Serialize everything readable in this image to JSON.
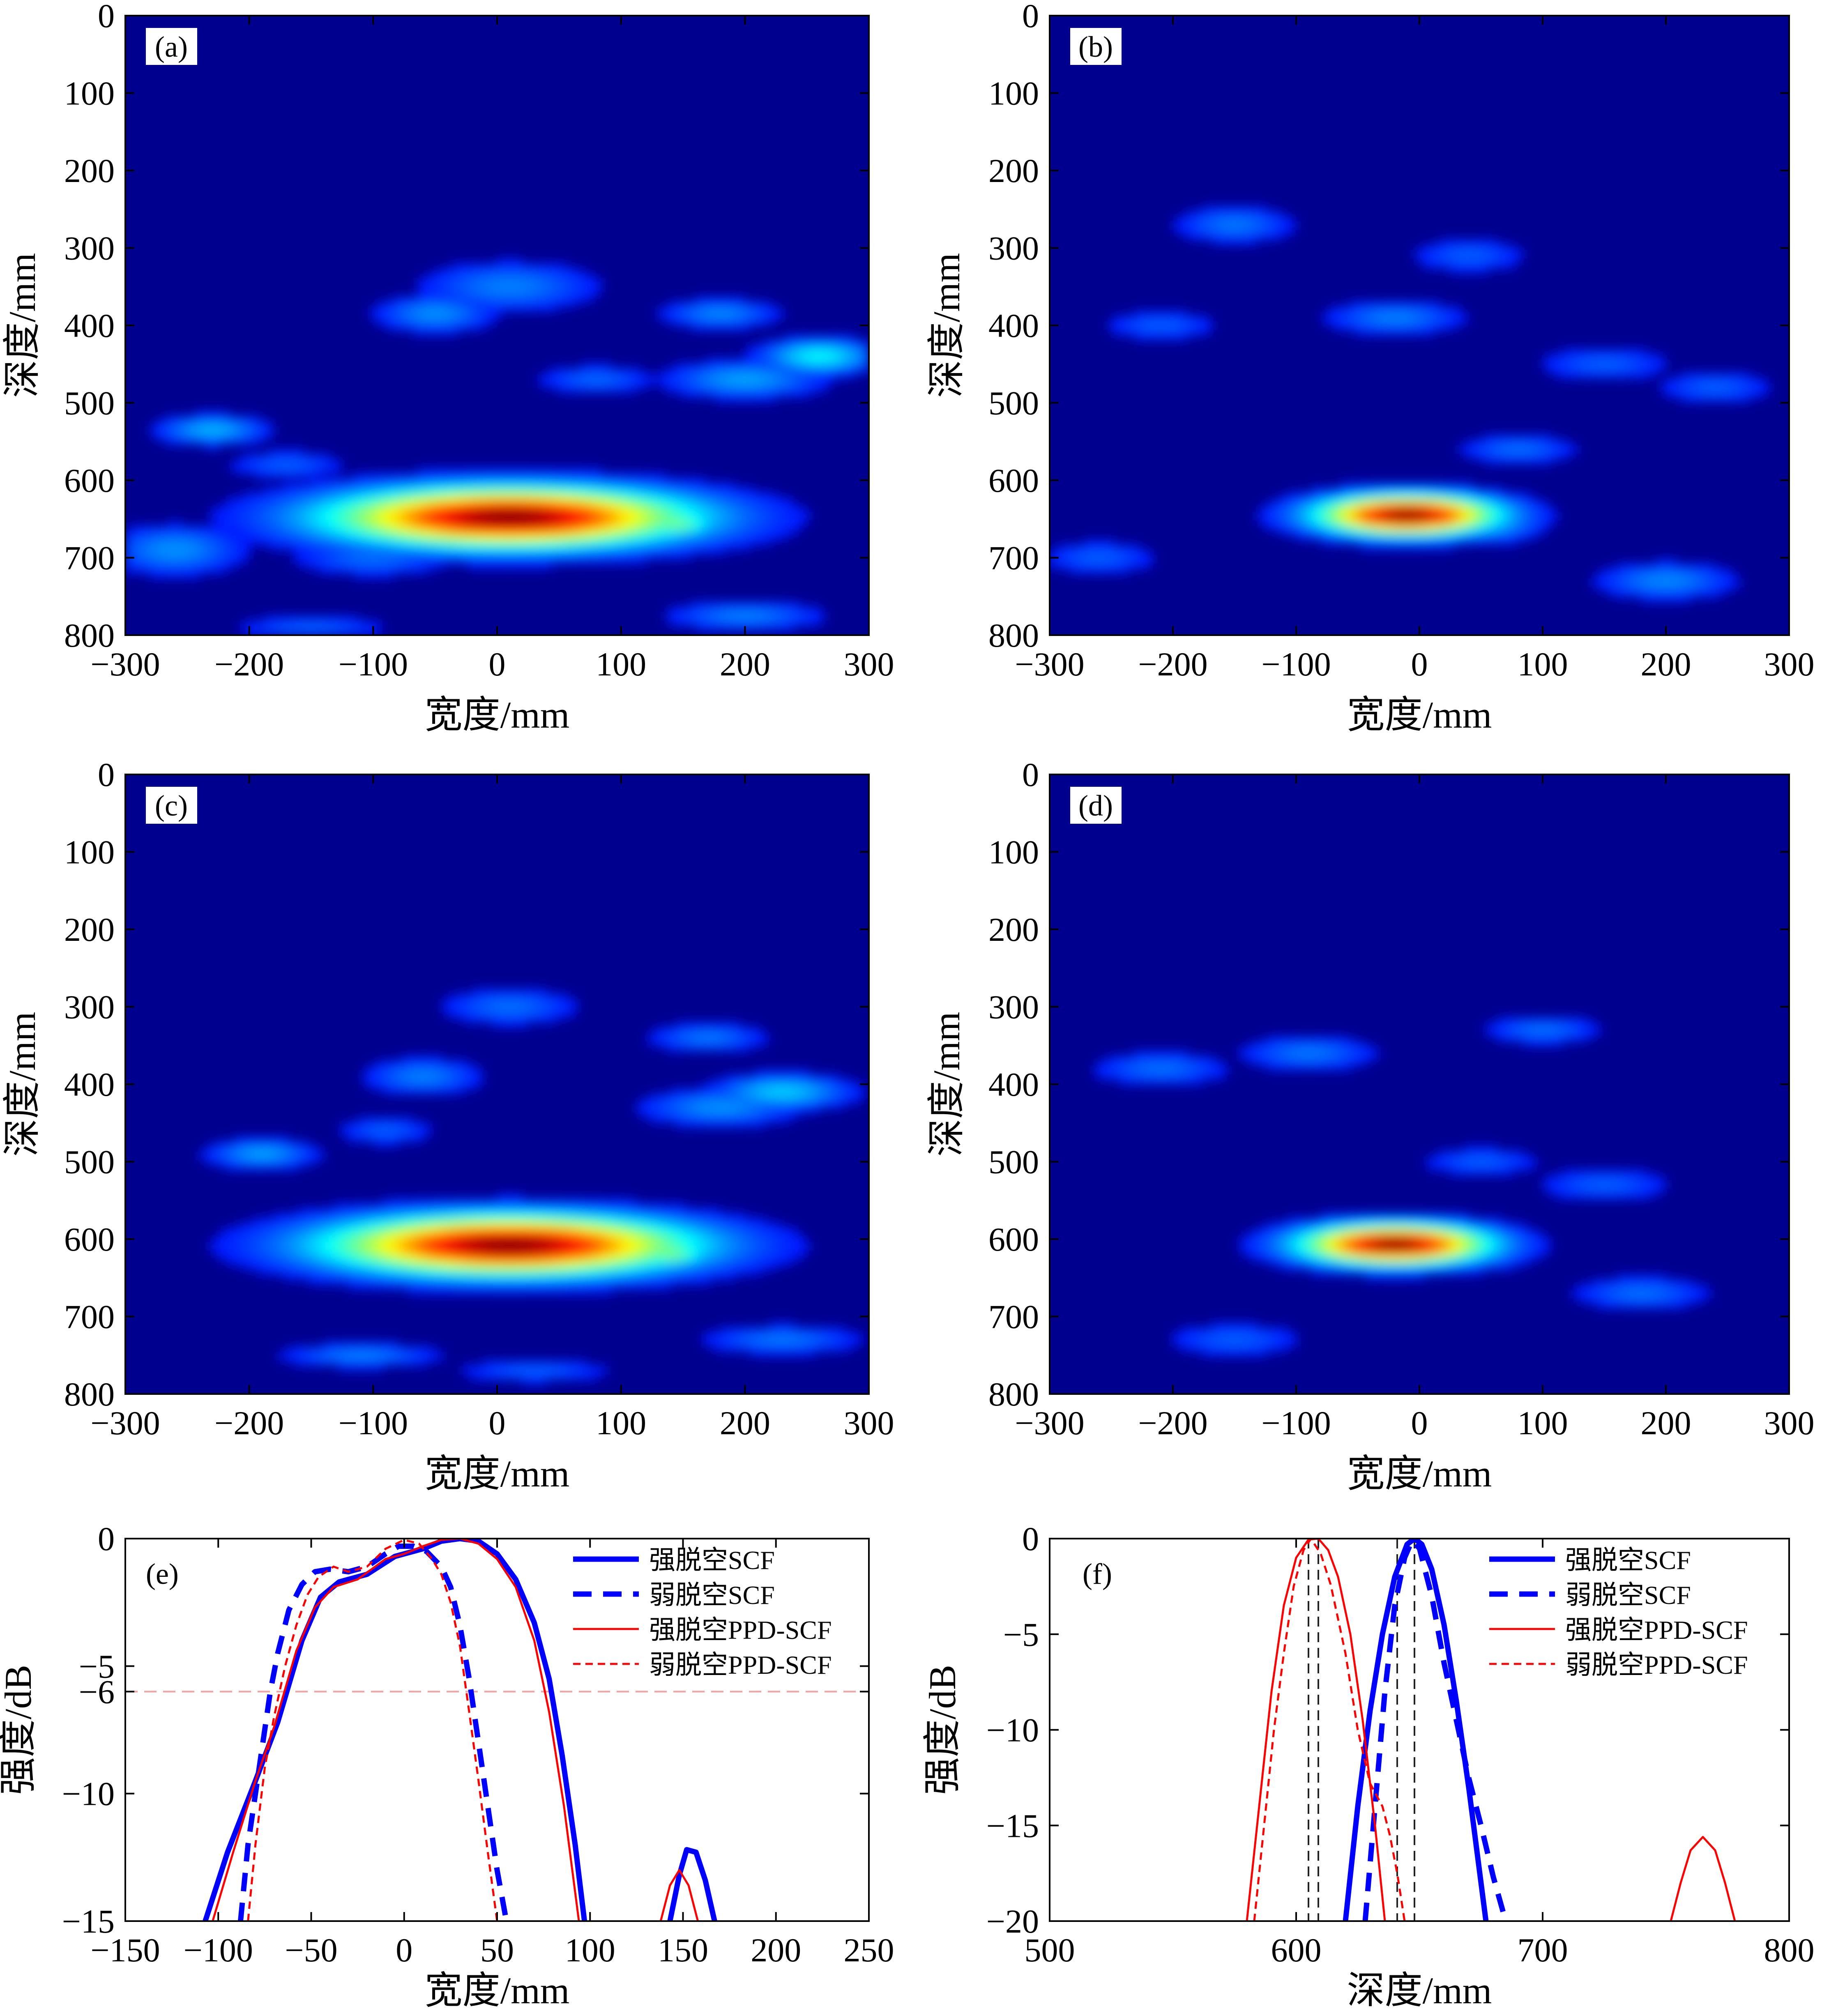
{
  "chart_data": [
    {
      "type": "heatmap",
      "panel_label": "(a)",
      "xlabel": "宽度/mm",
      "ylabel": "深度/mm",
      "xlim": [
        -300,
        300
      ],
      "ylim": [
        800,
        0
      ],
      "xticks": [
        "−300",
        "−200",
        "−100",
        "0",
        "100",
        "200",
        "300"
      ],
      "yticks": [
        "0",
        "100",
        "200",
        "300",
        "400",
        "500",
        "600",
        "700",
        "800"
      ],
      "hotspots": [
        {
          "x": 10,
          "y": 648,
          "wx": 95,
          "wy": 25,
          "i": 1.0
        },
        {
          "x": 145,
          "y": 657,
          "wx": 22,
          "wy": 9,
          "i": 0.45
        },
        {
          "x": -230,
          "y": 535,
          "wx": 28,
          "wy": 12,
          "i": 0.22
        },
        {
          "x": -50,
          "y": 385,
          "wx": 30,
          "wy": 15,
          "i": 0.18
        },
        {
          "x": 10,
          "y": 350,
          "wx": 45,
          "wy": 20,
          "i": 0.16
        },
        {
          "x": 260,
          "y": 440,
          "wx": 30,
          "wy": 14,
          "i": 0.3
        },
        {
          "x": 180,
          "y": 385,
          "wx": 30,
          "wy": 12,
          "i": 0.17
        },
        {
          "x": 200,
          "y": 470,
          "wx": 40,
          "wy": 15,
          "i": 0.2
        },
        {
          "x": -260,
          "y": 690,
          "wx": 35,
          "wy": 20,
          "i": 0.18
        },
        {
          "x": -100,
          "y": 700,
          "wx": 40,
          "wy": 15,
          "i": 0.14
        },
        {
          "x": 200,
          "y": 775,
          "wx": 40,
          "wy": 12,
          "i": 0.16
        },
        {
          "x": -150,
          "y": 790,
          "wx": 40,
          "wy": 10,
          "i": 0.12
        },
        {
          "x": -170,
          "y": 580,
          "wx": 30,
          "wy": 12,
          "i": 0.12
        },
        {
          "x": 80,
          "y": 470,
          "wx": 30,
          "wy": 12,
          "i": 0.13
        }
      ]
    },
    {
      "type": "heatmap",
      "panel_label": "(b)",
      "xlabel": "宽度/mm",
      "ylabel": "深度/mm",
      "xlim": [
        -300,
        300
      ],
      "ylim": [
        800,
        0
      ],
      "xticks": [
        "−300",
        "−200",
        "−100",
        "0",
        "100",
        "200",
        "300"
      ],
      "yticks": [
        "0",
        "100",
        "200",
        "300",
        "400",
        "500",
        "600",
        "700",
        "800"
      ],
      "hotspots": [
        {
          "x": -10,
          "y": 645,
          "wx": 48,
          "wy": 17,
          "i": 1.0
        },
        {
          "x": 50,
          "y": 655,
          "wx": 30,
          "wy": 15,
          "i": 0.25
        },
        {
          "x": -150,
          "y": 270,
          "wx": 30,
          "wy": 15,
          "i": 0.15
        },
        {
          "x": -20,
          "y": 390,
          "wx": 35,
          "wy": 14,
          "i": 0.16
        },
        {
          "x": 80,
          "y": 560,
          "wx": 30,
          "wy": 12,
          "i": 0.14
        },
        {
          "x": 200,
          "y": 730,
          "wx": 35,
          "wy": 15,
          "i": 0.17
        },
        {
          "x": -210,
          "y": 400,
          "wx": 30,
          "wy": 12,
          "i": 0.12
        },
        {
          "x": 150,
          "y": 450,
          "wx": 35,
          "wy": 14,
          "i": 0.12
        },
        {
          "x": 40,
          "y": 310,
          "wx": 30,
          "wy": 14,
          "i": 0.12
        },
        {
          "x": -260,
          "y": 700,
          "wx": 30,
          "wy": 14,
          "i": 0.12
        },
        {
          "x": 240,
          "y": 480,
          "wx": 30,
          "wy": 14,
          "i": 0.12
        }
      ]
    },
    {
      "type": "heatmap",
      "panel_label": "(c)",
      "xlabel": "宽度/mm",
      "ylabel": "深度/mm",
      "xlim": [
        -300,
        300
      ],
      "ylim": [
        800,
        0
      ],
      "xticks": [
        "−300",
        "−200",
        "−100",
        "0",
        "100",
        "200",
        "300"
      ],
      "yticks": [
        "0",
        "100",
        "200",
        "300",
        "400",
        "500",
        "600",
        "700",
        "800"
      ],
      "hotspots": [
        {
          "x": 10,
          "y": 608,
          "wx": 95,
          "wy": 25,
          "i": 1.0
        },
        {
          "x": 140,
          "y": 620,
          "wx": 22,
          "wy": 10,
          "i": 0.45
        },
        {
          "x": -190,
          "y": 490,
          "wx": 28,
          "wy": 12,
          "i": 0.2
        },
        {
          "x": -60,
          "y": 390,
          "wx": 30,
          "wy": 15,
          "i": 0.16
        },
        {
          "x": 10,
          "y": 300,
          "wx": 35,
          "wy": 15,
          "i": 0.14
        },
        {
          "x": 230,
          "y": 410,
          "wx": 35,
          "wy": 14,
          "i": 0.25
        },
        {
          "x": 170,
          "y": 340,
          "wx": 30,
          "wy": 12,
          "i": 0.15
        },
        {
          "x": 180,
          "y": 430,
          "wx": 40,
          "wy": 15,
          "i": 0.18
        },
        {
          "x": -110,
          "y": 750,
          "wx": 40,
          "wy": 10,
          "i": 0.16
        },
        {
          "x": 230,
          "y": 730,
          "wx": 40,
          "wy": 12,
          "i": 0.15
        },
        {
          "x": 30,
          "y": 770,
          "wx": 40,
          "wy": 10,
          "i": 0.12
        },
        {
          "x": -90,
          "y": 460,
          "wx": 25,
          "wy": 12,
          "i": 0.12
        }
      ]
    },
    {
      "type": "heatmap",
      "panel_label": "(d)",
      "xlabel": "宽度/mm",
      "ylabel": "深度/mm",
      "xlim": [
        -300,
        300
      ],
      "ylim": [
        800,
        0
      ],
      "xticks": [
        "−300",
        "−200",
        "−100",
        "0",
        "100",
        "200",
        "300"
      ],
      "yticks": [
        "0",
        "100",
        "200",
        "300",
        "400",
        "500",
        "600",
        "700",
        "800"
      ],
      "hotspots": [
        {
          "x": -20,
          "y": 607,
          "wx": 50,
          "wy": 17,
          "i": 1.0
        },
        {
          "x": 40,
          "y": 615,
          "wx": 30,
          "wy": 15,
          "i": 0.25
        },
        {
          "x": -90,
          "y": 360,
          "wx": 35,
          "wy": 14,
          "i": 0.15
        },
        {
          "x": -210,
          "y": 380,
          "wx": 35,
          "wy": 14,
          "i": 0.14
        },
        {
          "x": 100,
          "y": 330,
          "wx": 30,
          "wy": 12,
          "i": 0.14
        },
        {
          "x": 180,
          "y": 670,
          "wx": 35,
          "wy": 14,
          "i": 0.14
        },
        {
          "x": 50,
          "y": 500,
          "wx": 30,
          "wy": 12,
          "i": 0.12
        },
        {
          "x": -150,
          "y": 730,
          "wx": 35,
          "wy": 14,
          "i": 0.12
        },
        {
          "x": 150,
          "y": 530,
          "wx": 35,
          "wy": 14,
          "i": 0.12
        }
      ]
    },
    {
      "type": "line",
      "panel_label": "(e)",
      "xlabel": "宽度/mm",
      "ylabel": "强度/dB",
      "xlim": [
        -150,
        250
      ],
      "ylim": [
        -15,
        0
      ],
      "xticks": [
        -150,
        -100,
        -50,
        0,
        50,
        100,
        150,
        200,
        250
      ],
      "xtick_labels": [
        "−150",
        "−100",
        "−50",
        "0",
        "50",
        "100",
        "150",
        "200",
        "250"
      ],
      "yticks": [
        0,
        -5,
        -6,
        -10,
        -15
      ],
      "ytick_labels": [
        "0",
        "−5",
        "−6",
        "−10",
        "−15"
      ],
      "hline": -6,
      "series": [
        {
          "name": "强脱空SCF",
          "color": "#0000ff",
          "style": "thick-solid",
          "x": [
            -107,
            -95,
            -80,
            -68,
            -55,
            -45,
            -35,
            -20,
            -5,
            10,
            20,
            30,
            40,
            50,
            60,
            70,
            78,
            85,
            92,
            97
          ],
          "y": [
            -15,
            -12.3,
            -9.5,
            -7.2,
            -4,
            -2.3,
            -1.7,
            -1.4,
            -0.7,
            -0.4,
            -0.1,
            0,
            -0.1,
            -0.6,
            -1.6,
            -3.3,
            -5.5,
            -8.5,
            -12,
            -15
          ]
        },
        {
          "name": "强脱空SCF",
          "color": "#0000ff",
          "style": "thick-solid",
          "x": [
            143,
            148,
            152,
            157,
            162,
            167
          ],
          "y": [
            -15,
            -13.2,
            -12.2,
            -12.3,
            -13.4,
            -15
          ]
        },
        {
          "name": "弱脱空SCF",
          "color": "#0000ff",
          "style": "thick-dashed",
          "x": [
            -88,
            -84,
            -80,
            -76,
            -72,
            -68,
            -62,
            -55,
            -48,
            -40,
            -30,
            -20,
            -10,
            -3,
            5,
            12,
            20,
            25,
            30,
            35,
            40,
            45,
            50,
            55
          ],
          "y": [
            -15,
            -12,
            -10,
            -8,
            -6,
            -4.5,
            -2.8,
            -1.8,
            -1.3,
            -1.2,
            -1.3,
            -1.1,
            -0.6,
            -0.3,
            -0.3,
            -0.5,
            -1.1,
            -1.9,
            -3.4,
            -5.5,
            -8,
            -10.5,
            -13,
            -15
          ]
        },
        {
          "name": "强脱空PPD-SCF",
          "color": "#ff0000",
          "style": "thin-solid",
          "x": [
            -103,
            -92,
            -80,
            -70,
            -58,
            -48,
            -38,
            -25,
            -10,
            0,
            10,
            20,
            30,
            40,
            50,
            60,
            70,
            78,
            86,
            94
          ],
          "y": [
            -15,
            -12.3,
            -9.5,
            -7.4,
            -4.4,
            -2.7,
            -1.9,
            -1.6,
            -0.8,
            -0.6,
            -0.3,
            -0.05,
            0,
            -0.2,
            -0.8,
            -1.9,
            -4,
            -6.8,
            -10.5,
            -15
          ]
        },
        {
          "name": "强脱空PPD-SCF",
          "color": "#ff0000",
          "style": "thin-solid",
          "x": [
            138,
            143,
            148,
            153,
            158
          ],
          "y": [
            -15,
            -13.6,
            -13,
            -13.6,
            -15
          ]
        },
        {
          "name": "弱脱空PPD-SCF",
          "color": "#ff0000",
          "style": "thin-dashed",
          "x": [
            -84,
            -80,
            -75,
            -70,
            -64,
            -58,
            -52,
            -46,
            -38,
            -30,
            -20,
            -10,
            0,
            8,
            15,
            20,
            25,
            30,
            35,
            40,
            45,
            50
          ],
          "y": [
            -15,
            -12,
            -9,
            -7,
            -5,
            -3.4,
            -2.2,
            -1.5,
            -1.1,
            -1.3,
            -1.1,
            -0.4,
            -0.05,
            -0.2,
            -0.8,
            -1.4,
            -2.5,
            -4.2,
            -6.8,
            -9.5,
            -12.3,
            -15
          ]
        }
      ]
    },
    {
      "type": "line",
      "panel_label": "(f)",
      "xlabel": "深度/mm",
      "ylabel": "强度/dB",
      "xlim": [
        500,
        800
      ],
      "ylim": [
        -20,
        0
      ],
      "xticks": [
        500,
        600,
        700,
        800
      ],
      "xtick_labels": [
        "500",
        "600",
        "700",
        "800"
      ],
      "yticks": [
        0,
        -5,
        -10,
        -15,
        -20
      ],
      "ytick_labels": [
        "0",
        "−5",
        "−10",
        "−15",
        "−20"
      ],
      "vlines": [
        605,
        609,
        641,
        648
      ],
      "series": [
        {
          "name": "强脱空SCF",
          "color": "#0000ff",
          "style": "thick-solid",
          "x": [
            620,
            625,
            630,
            635,
            640,
            645,
            648,
            651,
            655,
            660,
            665,
            670,
            674,
            677
          ],
          "y": [
            -20,
            -14,
            -9,
            -5,
            -2,
            -0.3,
            0,
            -0.3,
            -1.6,
            -4.5,
            -8.5,
            -13,
            -17,
            -20
          ]
        },
        {
          "name": "弱脱空SCF",
          "color": "#0000ff",
          "style": "thick-dashed",
          "x": [
            628,
            632,
            636,
            640,
            644,
            647,
            650,
            655,
            660,
            665,
            670,
            675,
            680,
            685
          ],
          "y": [
            -20,
            -14,
            -8,
            -3.5,
            -1,
            -0.1,
            -0.5,
            -3,
            -6.5,
            -9.5,
            -12.5,
            -15,
            -17.7,
            -20
          ]
        },
        {
          "name": "强脱空PPD-SCF",
          "color": "#ff0000",
          "style": "thin-solid",
          "x": [
            580,
            585,
            590,
            595,
            600,
            605,
            609,
            613,
            617,
            622,
            627,
            632,
            636
          ],
          "y": [
            -20,
            -14,
            -8,
            -3.5,
            -1,
            -0.05,
            0,
            -0.6,
            -2,
            -5,
            -9.5,
            -15,
            -20
          ]
        },
        {
          "name": "强脱空PPD-SCF",
          "color": "#ff0000",
          "style": "thin-solid",
          "x": [
            752,
            756,
            760,
            765,
            770,
            774,
            778
          ],
          "y": [
            -20,
            -18,
            -16.3,
            -15.6,
            -16.3,
            -18,
            -20
          ]
        },
        {
          "name": "弱脱空PPD-SCF",
          "color": "#ff0000",
          "style": "thin-dashed",
          "x": [
            583,
            587,
            591,
            595,
            599,
            603,
            606,
            610,
            614,
            620,
            625,
            630,
            635,
            638,
            641,
            644
          ],
          "y": [
            -20,
            -15,
            -10,
            -6,
            -2.5,
            -0.6,
            0,
            -0.8,
            -2.4,
            -6,
            -10,
            -12.8,
            -14,
            -15.5,
            -17.5,
            -20
          ]
        }
      ]
    }
  ]
}
